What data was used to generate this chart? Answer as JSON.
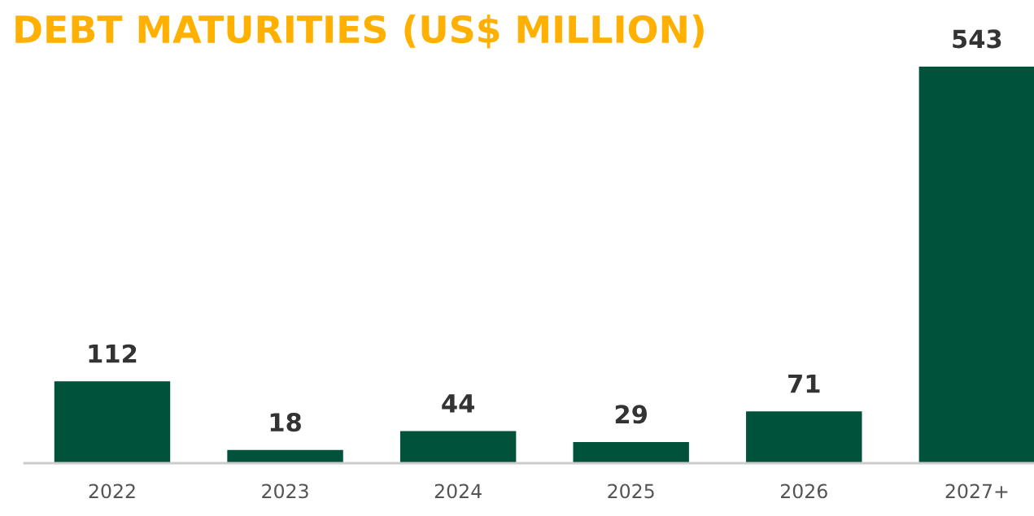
{
  "chart_data": {
    "type": "bar",
    "title": "DEBT MATURITIES (US$ MILLION)",
    "categories": [
      "2022",
      "2023",
      "2024",
      "2025",
      "2026",
      "2027+"
    ],
    "values": [
      112,
      18,
      44,
      29,
      71,
      543
    ],
    "color": "#00533a",
    "data_labels": true,
    "grid": false,
    "legend": false
  }
}
